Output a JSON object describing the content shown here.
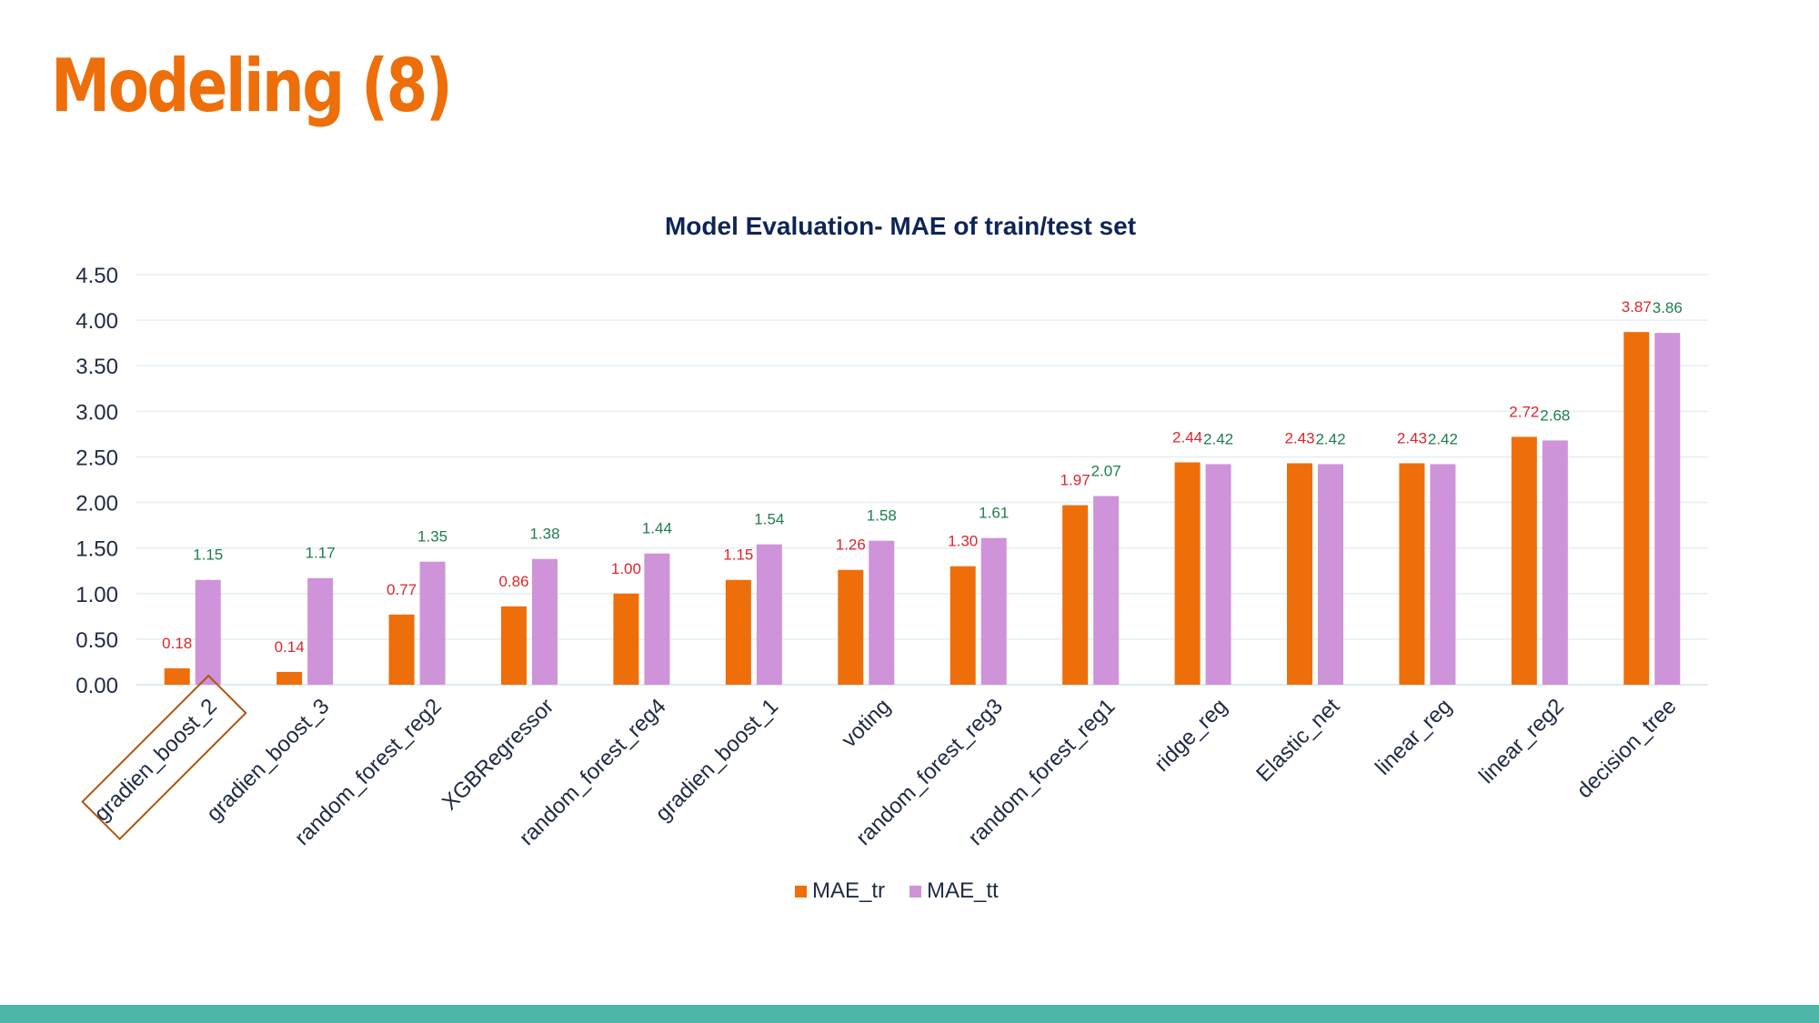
{
  "slide": {
    "title": "Modeling (8)",
    "accent_color": "#EE6E0A",
    "footer_color": "#4DB6A8"
  },
  "chart_data": {
    "type": "bar",
    "title": "Model Evaluation- MAE of train/test set",
    "xlabel": "",
    "ylabel": "",
    "ylim": [
      0,
      4.5
    ],
    "yticks": [
      "0.00",
      "0.50",
      "1.00",
      "1.50",
      "2.00",
      "2.50",
      "3.00",
      "3.50",
      "4.00",
      "4.50"
    ],
    "ytick_step": 0.5,
    "grid": true,
    "legend_position": "bottom",
    "highlighted_category": "gradien_boost_2",
    "categories": [
      "gradien_boost_2",
      "gradien_boost_3",
      "random_forest_reg2",
      "XGBRegressor",
      "random_forest_reg4",
      "gradien_boost_1",
      "voting",
      "random_forest_reg3",
      "random_forest_reg1",
      "ridge_reg",
      "Elastic_net",
      "linear_reg",
      "linear_reg2",
      "decision_tree"
    ],
    "series": [
      {
        "name": "MAE_tr",
        "color": "#EE6E0A",
        "label_color": "#E0242B",
        "values": [
          0.18,
          0.14,
          0.77,
          0.86,
          1.0,
          1.15,
          1.26,
          1.3,
          1.97,
          2.44,
          2.43,
          2.43,
          2.72,
          3.87
        ],
        "labels": [
          "0.18",
          "0.14",
          "0.77",
          "0.86",
          "1.00",
          "1.15",
          "1.26",
          "1.30",
          "1.97",
          "2.44",
          "2.43",
          "2.43",
          "2.72",
          "3.87"
        ]
      },
      {
        "name": "MAE_tt",
        "color": "#CE93D8",
        "label_color": "#1E7D4E",
        "values": [
          1.15,
          1.17,
          1.35,
          1.38,
          1.44,
          1.54,
          1.58,
          1.61,
          2.07,
          2.42,
          2.42,
          2.42,
          2.68,
          3.86
        ],
        "labels": [
          "1.15",
          "1.17",
          "1.35",
          "1.38",
          "1.44",
          "1.54",
          "1.58",
          "1.61",
          "2.07",
          "2.42",
          "2.42",
          "2.42",
          "2.68",
          "3.86"
        ]
      }
    ],
    "title_color": "#0F2557",
    "axis_text_color": "#1F2A44",
    "grid_color": "#E3EEF5"
  }
}
